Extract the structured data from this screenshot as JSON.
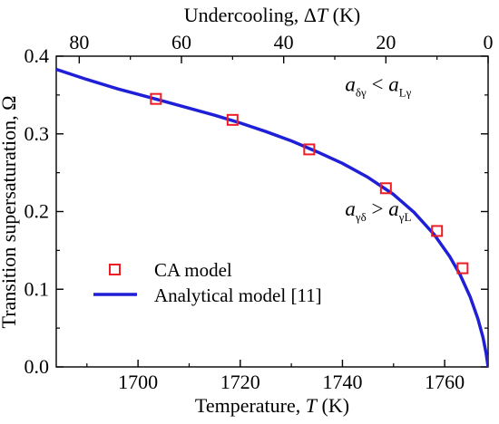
{
  "chart_data": {
    "type": "scatter",
    "xlabel_prefix": "Temperature, ",
    "xlabel_var": "T",
    "xlabel_unit": " (K)",
    "x2label_prefix": "Undercooling, Δ",
    "x2label_var": "T",
    "x2label_unit": " (K)",
    "ylabel": "Transition supersaturation, Ω",
    "xlim": [
      1684,
      1768.5
    ],
    "ylim": [
      0.0,
      0.4
    ],
    "x2_reference": 1768.5,
    "xticks": [
      1700,
      1720,
      1740,
      1760
    ],
    "x2ticks": [
      80,
      60,
      40,
      20,
      0
    ],
    "yticks": [
      "0.0",
      "0.1",
      "0.2",
      "0.3",
      "0.4"
    ],
    "grid": false,
    "legend_position": "bottom-left",
    "series": [
      {
        "name": "CA model",
        "kind": "scatter",
        "color": "#ee1c25",
        "marker": "open-square",
        "x": [
          1703.5,
          1718.5,
          1733.5,
          1748.5,
          1758.5,
          1763.5
        ],
        "y": [
          0.345,
          0.318,
          0.28,
          0.23,
          0.175,
          0.127
        ]
      },
      {
        "name": "Analytical model [11]",
        "kind": "line",
        "color": "#1f1fd8",
        "x": [
          1684,
          1690,
          1696,
          1700,
          1705,
          1710,
          1715,
          1720,
          1725,
          1730,
          1735,
          1740,
          1745,
          1750,
          1754,
          1758,
          1761,
          1763,
          1765,
          1766.5,
          1767.5,
          1768.1,
          1768.5
        ],
        "y": [
          0.383,
          0.37,
          0.358,
          0.351,
          0.342,
          0.333,
          0.324,
          0.314,
          0.303,
          0.291,
          0.277,
          0.262,
          0.244,
          0.222,
          0.199,
          0.17,
          0.142,
          0.119,
          0.09,
          0.062,
          0.038,
          0.018,
          0.0
        ]
      }
    ],
    "annotations": [
      {
        "var1": "a",
        "sub1": "δγ",
        "op": " < ",
        "var2": "a",
        "sub2": "Lγ",
        "x": 1747,
        "y": 0.355
      },
      {
        "var1": "a",
        "sub1": "γδ",
        "op": " > ",
        "var2": "a",
        "sub2": "γL",
        "x": 1747,
        "y": 0.195
      }
    ]
  }
}
